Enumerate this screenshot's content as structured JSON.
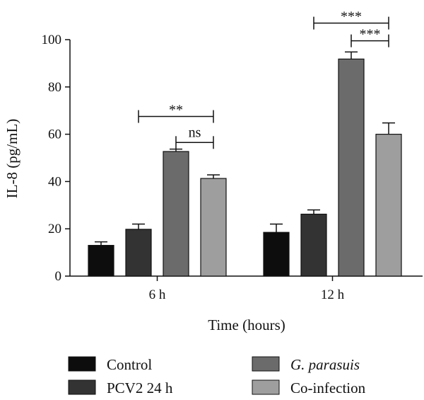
{
  "chart_data": {
    "type": "bar",
    "xlabel": "Time (hours)",
    "ylabel": "IL-8 (pg/mL)",
    "ylim": [
      0,
      100
    ],
    "yticks": [
      0,
      20,
      40,
      60,
      80,
      100
    ],
    "categories": [
      "6 h",
      "12 h"
    ],
    "series": [
      {
        "name": "Control",
        "italic": false,
        "color": "#0d0d0d",
        "values": [
          13,
          18.5
        ],
        "errors": [
          1.5,
          3.5
        ]
      },
      {
        "name": "PCV2 24 h",
        "italic": false,
        "color": "#333333",
        "values": [
          19.8,
          26.2
        ],
        "errors": [
          2.2,
          1.8
        ]
      },
      {
        "name": "G. parasuis",
        "italic": true,
        "color": "#6b6b6b",
        "values": [
          52.7,
          91.8
        ],
        "errors": [
          1.0,
          3.0
        ]
      },
      {
        "name": "Co-infection",
        "italic": false,
        "color": "#9e9e9e",
        "values": [
          41.3,
          60
        ],
        "errors": [
          1.5,
          4.8
        ]
      }
    ],
    "significance": [
      {
        "category": "6 h",
        "from_series": "PCV2 24 h",
        "to_series": "Co-infection",
        "label": "**"
      },
      {
        "category": "6 h",
        "from_series": "G. parasuis",
        "to_series": "Co-infection",
        "label": "ns"
      },
      {
        "category": "12 h",
        "from_series": "PCV2 24 h",
        "to_series": "Co-infection",
        "label": "***"
      },
      {
        "category": "12 h",
        "from_series": "G. parasuis",
        "to_series": "Co-infection",
        "label": "***"
      }
    ],
    "legend_position": "bottom"
  }
}
